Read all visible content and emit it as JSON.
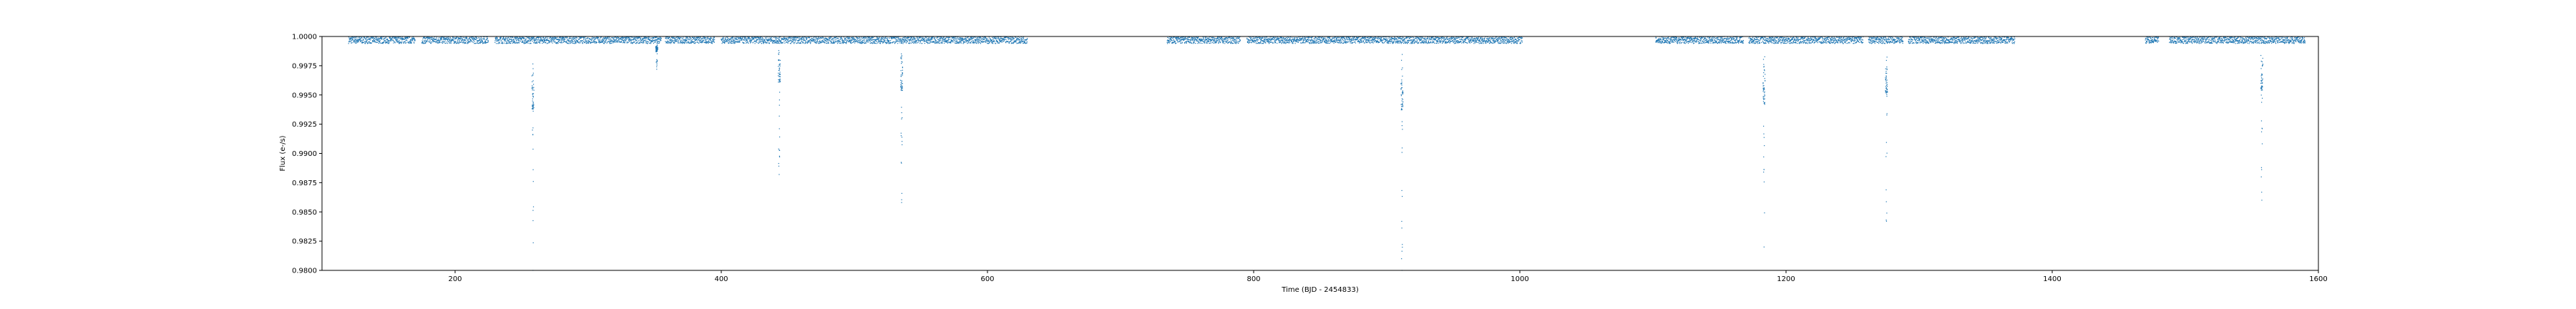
{
  "chart_data": {
    "type": "scatter",
    "title": "",
    "xlabel": "Time (BJD - 2454833)",
    "ylabel": "Flux (e-/s)",
    "xlim": [
      100,
      1600
    ],
    "ylim": [
      0.98,
      1.0
    ],
    "xticks": [
      200,
      400,
      600,
      800,
      1000,
      1200,
      1400,
      1600
    ],
    "xtick_labels": [
      "200",
      "400",
      "600",
      "800",
      "1000",
      "1200",
      "1400",
      "1600"
    ],
    "yticks": [
      0.98,
      0.9825,
      0.985,
      0.9875,
      0.99,
      0.9925,
      0.995,
      0.9975,
      1.0
    ],
    "ytick_labels": [
      "0.9800",
      "0.9825",
      "0.9850",
      "0.9875",
      "0.9900",
      "0.9925",
      "0.9950",
      "0.9975",
      "1.0000"
    ],
    "grid": false,
    "marker_color": "#1f77b4",
    "baseline_flux": 0.9997,
    "observed_segments": [
      [
        120,
        170
      ],
      [
        175,
        225
      ],
      [
        230,
        355
      ],
      [
        358,
        395
      ],
      [
        400,
        630
      ],
      [
        735,
        790
      ],
      [
        795,
        1002
      ],
      [
        1102,
        1168
      ],
      [
        1172,
        1258
      ],
      [
        1262,
        1288
      ],
      [
        1292,
        1372
      ],
      [
        1470,
        1480
      ],
      [
        1488,
        1590
      ]
    ],
    "transits": [
      {
        "x": 258.5,
        "flux_min": 0.98
      },
      {
        "x": 351.5,
        "flux_min": 0.9972
      },
      {
        "x": 443.5,
        "flux_min": 0.9882
      },
      {
        "x": 535.5,
        "flux_min": 0.9858
      },
      {
        "x": 911.5,
        "flux_min": 0.98
      },
      {
        "x": 1183.5,
        "flux_min": 0.982
      },
      {
        "x": 1275.5,
        "flux_min": 0.9842
      },
      {
        "x": 1557.5,
        "flux_min": 0.986
      }
    ]
  }
}
